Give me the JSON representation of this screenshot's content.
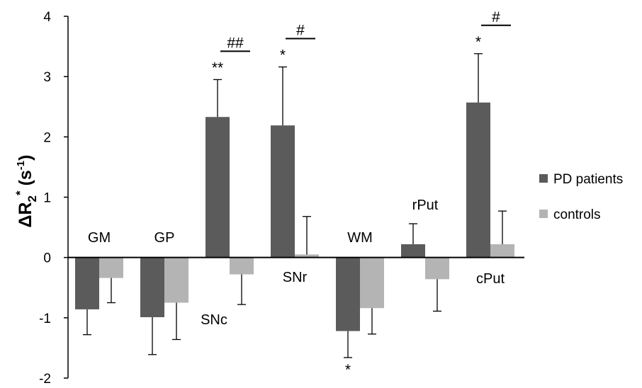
{
  "chart_data": {
    "type": "bar",
    "title": "",
    "xlabel": "",
    "ylabel": {
      "base": "ΔR",
      "sub": "2",
      "sup": "*",
      "unit_open": " (s",
      "unit_sup": "-1",
      "unit_close": ")"
    },
    "ylim": [
      -2,
      4
    ],
    "yticks": [
      "-2",
      "-1",
      "0",
      "1",
      "2",
      "3",
      "4"
    ],
    "categories": [
      "GM",
      "GP",
      "SNc",
      "SNr",
      "WM",
      "rPut",
      "cPut"
    ],
    "series": [
      {
        "name": "PD patients",
        "color": "#5b5b5b",
        "values": [
          -0.86,
          -0.99,
          2.33,
          2.19,
          -1.22,
          0.22,
          2.57
        ],
        "errors": [
          0.42,
          0.62,
          0.62,
          0.97,
          0.44,
          0.34,
          0.81
        ]
      },
      {
        "name": "controls",
        "color": "#b4b4b4",
        "values": [
          -0.34,
          -0.75,
          -0.28,
          0.05,
          -0.84,
          -0.36,
          0.22
        ],
        "errors": [
          0.41,
          0.61,
          0.5,
          0.63,
          0.43,
          0.53,
          0.55
        ]
      }
    ],
    "bar_labels": {
      "GM": "GM",
      "GP": "GP",
      "SNc": "SNc",
      "SNr": "SNr",
      "WM": "WM",
      "rPut": "rPut",
      "cPut": "cPut"
    },
    "significance": {
      "stars": [
        {
          "category": "SNc",
          "series": 0,
          "text": "**"
        },
        {
          "category": "SNr",
          "series": 0,
          "text": "*"
        },
        {
          "category": "WM",
          "series": 0,
          "text": "*"
        },
        {
          "category": "cPut",
          "series": 0,
          "text": "*"
        }
      ],
      "between_group": [
        {
          "category": "SNc",
          "text": "##"
        },
        {
          "category": "SNr",
          "text": "#"
        },
        {
          "category": "cPut",
          "text": "#"
        }
      ]
    },
    "legend": {
      "position": "right",
      "entries": [
        "PD patients",
        "controls"
      ]
    },
    "grid": false
  }
}
